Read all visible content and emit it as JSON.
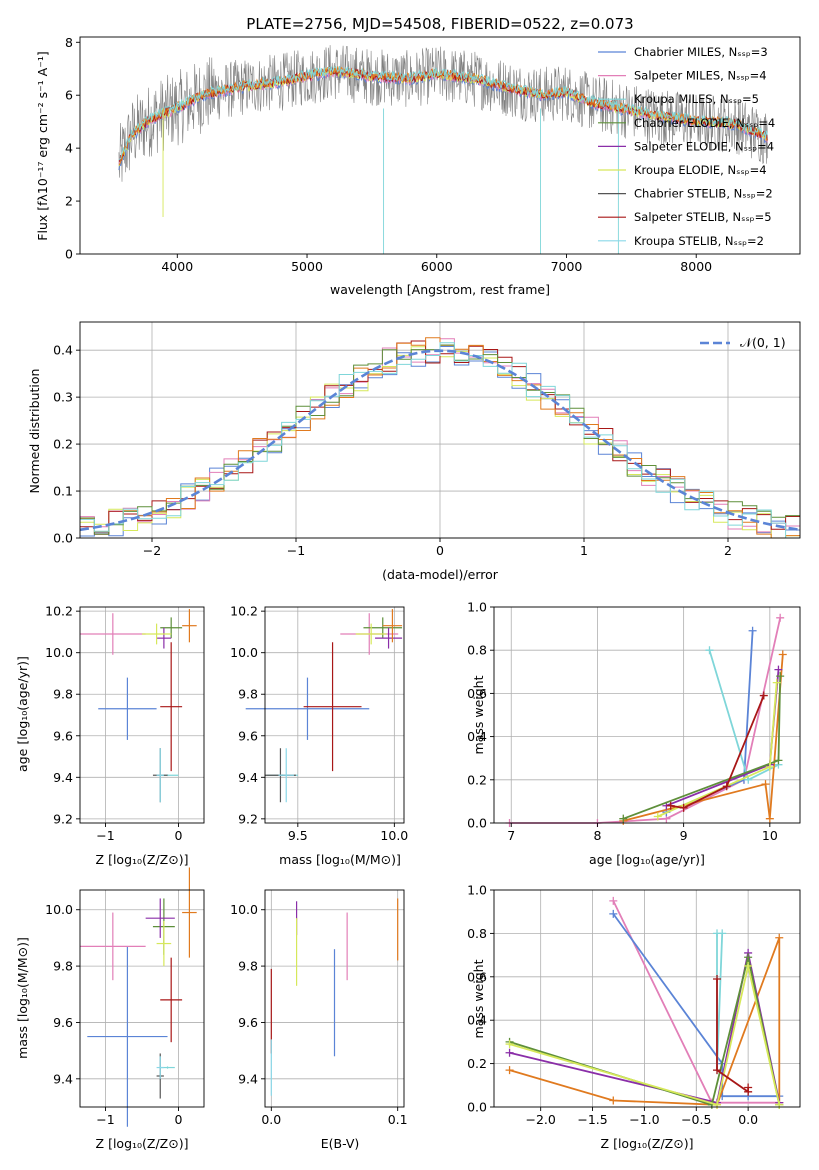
{
  "colors": {
    "chabrier_miles": "#5b84d6",
    "salpeter_miles": "#e27fb8",
    "kroupa_miles": "#7fd6d9",
    "chabrier_elodie": "#5e8f3a",
    "salpeter_elodie": "#8a2ea8",
    "kroupa_elodie": "#d6e85a",
    "chabrier_stelib": "#555555",
    "salpeter_stelib": "#a81717",
    "kroupa_stelib": "#8ad8e8",
    "orange": "#e07a1f",
    "data": "#808080",
    "gauss": "#5b84d6"
  },
  "chart_data": [
    {
      "type": "line",
      "title": "PLATE=2756, MJD=54508, FIBERID=0522, z=0.073",
      "xlabel": "wavelength [Angstrom, rest frame]",
      "ylabel": "Flux [fλ10⁻¹⁷ erg cm⁻² s⁻¹ A⁻¹]",
      "xlim": [
        3250,
        8800
      ],
      "ylim": [
        0,
        8.2
      ],
      "xticks": [
        "4000",
        "5000",
        "6000",
        "7000",
        "8000"
      ],
      "yticks": [
        "0",
        "2",
        "4",
        "6",
        "8"
      ],
      "legend": [
        "Chabrier MILES, Nₛₛₚ=3",
        "Salpeter MILES, Nₛₛₚ=4",
        "Kroupa MILES, Nₛₛₚ=5",
        "Chabrier ELODIE, Nₛₛₚ=4",
        "Salpeter ELODIE, Nₛₛₚ=4",
        "Kroupa ELODIE, Nₛₛₚ=4",
        "Chabrier STELIB, Nₛₛₚ=2",
        "Salpeter STELIB, Nₛₛₚ=5",
        "Kroupa STELIB, Nₛₛₚ=2"
      ],
      "legend_colors": [
        "chabrier_miles",
        "salpeter_miles",
        "kroupa_miles",
        "chabrier_elodie",
        "salpeter_elodie",
        "kroupa_elodie",
        "chabrier_stelib",
        "salpeter_stelib",
        "kroupa_stelib"
      ],
      "continuum": [
        [
          3550,
          3.4
        ],
        [
          3650,
          4.5
        ],
        [
          3800,
          5.1
        ],
        [
          4000,
          5.5
        ],
        [
          4200,
          6.0
        ],
        [
          4500,
          6.3
        ],
        [
          4800,
          6.5
        ],
        [
          5000,
          6.7
        ],
        [
          5200,
          6.9
        ],
        [
          5500,
          6.7
        ],
        [
          5800,
          6.6
        ],
        [
          6000,
          6.8
        ],
        [
          6300,
          6.6
        ],
        [
          6600,
          6.2
        ],
        [
          6800,
          6.0
        ],
        [
          7000,
          6.1
        ],
        [
          7200,
          5.7
        ],
        [
          7400,
          5.5
        ],
        [
          7700,
          5.2
        ],
        [
          8000,
          5.0
        ],
        [
          8300,
          4.9
        ],
        [
          8550,
          4.4
        ]
      ]
    },
    {
      "type": "line",
      "xlabel": "(data-model)/error",
      "ylabel": "Normed distribution",
      "xlim": [
        -2.5,
        2.5
      ],
      "ylim": [
        0,
        0.46
      ],
      "xticks": [
        "−2",
        "−1",
        "0",
        "1",
        "2"
      ],
      "yticks": [
        "0.0",
        "0.1",
        "0.2",
        "0.3",
        "0.4"
      ],
      "legend": [
        "𝒩(0, 1)"
      ]
    },
    {
      "type": "scatter",
      "xlabel": "Z [log₁₀(Z/Z⊙)]",
      "ylabel": "age  [log₁₀(age/yr)]",
      "xlim": [
        -1.35,
        0.35
      ],
      "ylim": [
        9.18,
        10.22
      ],
      "xticks": [
        "−1",
        "0"
      ],
      "yticks": [
        "9.2",
        "9.4",
        "9.6",
        "9.8",
        "10.0",
        "10.2"
      ],
      "points": [
        {
          "x": -0.7,
          "y": 9.73,
          "xerr": 0.4,
          "yerr": 0.15,
          "color": "chabrier_miles"
        },
        {
          "x": -0.9,
          "y": 10.09,
          "xerr": 0.45,
          "yerr": 0.1,
          "color": "salpeter_miles"
        },
        {
          "x": -0.15,
          "y": 9.41,
          "xerr": 0.15,
          "yerr": 0.0,
          "color": "kroupa_miles"
        },
        {
          "x": -0.1,
          "y": 10.12,
          "xerr": 0.15,
          "yerr": 0.05,
          "color": "chabrier_elodie"
        },
        {
          "x": -0.2,
          "y": 10.07,
          "xerr": 0.1,
          "yerr": 0.05,
          "color": "salpeter_elodie"
        },
        {
          "x": -0.3,
          "y": 10.09,
          "xerr": 0.2,
          "yerr": 0.05,
          "color": "kroupa_elodie"
        },
        {
          "x": -0.25,
          "y": 9.41,
          "xerr": 0.1,
          "yerr": 0.13,
          "color": "chabrier_stelib"
        },
        {
          "x": -0.1,
          "y": 9.74,
          "xerr": 0.15,
          "yerr": 0.31,
          "color": "salpeter_stelib"
        },
        {
          "x": -0.25,
          "y": 9.41,
          "xerr": 0.05,
          "yerr": 0.13,
          "color": "kroupa_stelib"
        },
        {
          "x": 0.15,
          "y": 10.13,
          "xerr": 0.1,
          "yerr": 0.08,
          "color": "orange"
        }
      ]
    },
    {
      "type": "scatter",
      "xlabel": "mass [log₁₀(M/M⊙)]",
      "xlim": [
        9.33,
        10.05
      ],
      "ylim": [
        9.18,
        10.22
      ],
      "xticks": [
        "9.5",
        "10.0"
      ],
      "yticks": [
        "9.2",
        "9.4",
        "9.6",
        "9.8",
        "10.0",
        "10.2"
      ],
      "points": [
        {
          "x": 9.55,
          "y": 9.73,
          "xerr": 0.32,
          "yerr": 0.15,
          "color": "chabrier_miles"
        },
        {
          "x": 9.87,
          "y": 10.09,
          "xerr": 0.15,
          "yerr": 0.1,
          "color": "salpeter_miles"
        },
        {
          "x": 9.42,
          "y": 9.41,
          "xerr": 0.08,
          "yerr": 0.0,
          "color": "kroupa_miles"
        },
        {
          "x": 9.94,
          "y": 10.12,
          "xerr": 0.1,
          "yerr": 0.05,
          "color": "chabrier_elodie"
        },
        {
          "x": 9.97,
          "y": 10.07,
          "xerr": 0.07,
          "yerr": 0.05,
          "color": "salpeter_elodie"
        },
        {
          "x": 9.88,
          "y": 10.09,
          "xerr": 0.08,
          "yerr": 0.05,
          "color": "kroupa_elodie"
        },
        {
          "x": 9.41,
          "y": 9.41,
          "xerr": 0.08,
          "yerr": 0.13,
          "color": "chabrier_stelib"
        },
        {
          "x": 9.68,
          "y": 9.74,
          "xerr": 0.15,
          "yerr": 0.31,
          "color": "salpeter_stelib"
        },
        {
          "x": 9.44,
          "y": 9.41,
          "xerr": 0.04,
          "yerr": 0.13,
          "color": "kroupa_stelib"
        },
        {
          "x": 9.99,
          "y": 10.13,
          "xerr": 0.05,
          "yerr": 0.08,
          "color": "orange"
        }
      ]
    },
    {
      "type": "line",
      "xlabel": "age  [log₁₀(age/yr)]",
      "ylabel": "mass weight",
      "xlim": [
        6.8,
        10.35
      ],
      "ylim": [
        0,
        1.0
      ],
      "xticks": [
        "7",
        "8",
        "9",
        "10"
      ],
      "yticks": [
        "0.0",
        "0.2",
        "0.4",
        "0.6",
        "0.8",
        "1.0"
      ],
      "series": [
        {
          "color": "salpeter_miles",
          "x": [
            6.98,
            8.0,
            8.8,
            9.7,
            10.12
          ],
          "y": [
            0.0,
            0.0,
            0.02,
            0.2,
            0.95
          ]
        },
        {
          "color": "chabrier_miles",
          "x": [
            8.8,
            9.7,
            9.8
          ],
          "y": [
            0.05,
            0.2,
            0.89
          ]
        },
        {
          "color": "kroupa_miles",
          "x": [
            9.3,
            9.75,
            10.1
          ],
          "y": [
            0.8,
            0.2,
            0.27
          ]
        },
        {
          "color": "orange",
          "x": [
            8.3,
            9.95,
            10.0,
            10.15
          ],
          "y": [
            0.01,
            0.18,
            0.02,
            0.78
          ]
        },
        {
          "color": "salpeter_elodie",
          "x": [
            8.8,
            10.0,
            10.1
          ],
          "y": [
            0.08,
            0.27,
            0.71
          ]
        },
        {
          "color": "chabrier_elodie",
          "x": [
            8.3,
            10.1,
            10.12
          ],
          "y": [
            0.02,
            0.29,
            0.68
          ]
        },
        {
          "color": "kroupa_elodie",
          "x": [
            8.7,
            10.0,
            10.08
          ],
          "y": [
            0.03,
            0.26,
            0.65
          ]
        },
        {
          "color": "salpeter_stelib",
          "x": [
            8.85,
            9.0,
            9.5,
            9.93
          ],
          "y": [
            0.08,
            0.07,
            0.17,
            0.59
          ]
        }
      ]
    },
    {
      "type": "scatter",
      "xlabel": "Z [log₁₀(Z/Z⊙)]",
      "ylabel": "mass [log₁₀(M/M⊙)]",
      "xlim": [
        -1.35,
        0.35
      ],
      "ylim": [
        9.3,
        10.07
      ],
      "xticks": [
        "−1",
        "0"
      ],
      "yticks": [
        "9.4",
        "9.6",
        "9.8",
        "10.0"
      ],
      "points": [
        {
          "x": -0.7,
          "y": 9.55,
          "xerr": 0.55,
          "yerr": 0.32,
          "color": "chabrier_miles"
        },
        {
          "x": -0.9,
          "y": 9.87,
          "xerr": 0.45,
          "yerr": 0.12,
          "color": "salpeter_miles"
        },
        {
          "x": -0.15,
          "y": 9.44,
          "xerr": 0.1,
          "yerr": 0.0,
          "color": "kroupa_miles"
        },
        {
          "x": -0.2,
          "y": 9.94,
          "xerr": 0.15,
          "yerr": 0.1,
          "color": "chabrier_elodie"
        },
        {
          "x": -0.25,
          "y": 9.97,
          "xerr": 0.2,
          "yerr": 0.07,
          "color": "salpeter_elodie"
        },
        {
          "x": -0.2,
          "y": 9.88,
          "xerr": 0.1,
          "yerr": 0.08,
          "color": "kroupa_elodie"
        },
        {
          "x": -0.25,
          "y": 9.41,
          "xerr": 0.05,
          "yerr": 0.08,
          "color": "chabrier_stelib"
        },
        {
          "x": -0.1,
          "y": 9.68,
          "xerr": 0.15,
          "yerr": 0.15,
          "color": "salpeter_stelib"
        },
        {
          "x": -0.25,
          "y": 9.44,
          "xerr": 0.05,
          "yerr": 0.04,
          "color": "kroupa_stelib"
        },
        {
          "x": 0.15,
          "y": 9.99,
          "xerr": 0.1,
          "yerr": 0.16,
          "color": "orange"
        }
      ]
    },
    {
      "type": "scatter",
      "xlabel": "E(B-V)",
      "xlim": [
        -0.005,
        0.105
      ],
      "ylim": [
        9.3,
        10.07
      ],
      "xticks": [
        "0.0",
        "0.1"
      ],
      "yticks": [
        "9.4",
        "9.6",
        "9.8",
        "10.0"
      ],
      "points": [
        {
          "x": 0.05,
          "y": 9.67,
          "yerr": 0.19,
          "color": "chabrier_miles"
        },
        {
          "x": 0.06,
          "y": 9.87,
          "yerr": 0.12,
          "color": "salpeter_miles"
        },
        {
          "x": 0.02,
          "y": 9.97,
          "yerr": 0.06,
          "color": "salpeter_elodie"
        },
        {
          "x": 0.02,
          "y": 9.85,
          "yerr": 0.12,
          "color": "kroupa_elodie"
        },
        {
          "x": 0.0,
          "y": 9.64,
          "yerr": 0.15,
          "color": "salpeter_stelib"
        },
        {
          "x": 0.0,
          "y": 9.44,
          "yerr": 0.1,
          "color": "kroupa_stelib"
        },
        {
          "x": 0.1,
          "y": 9.93,
          "yerr": 0.11,
          "color": "orange"
        }
      ]
    },
    {
      "type": "line",
      "xlabel": "Z [log₁₀(Z/Z⊙)]",
      "ylabel": "mass weight",
      "xlim": [
        -2.45,
        0.5
      ],
      "ylim": [
        0,
        1.0
      ],
      "xticks": [
        "−2.0",
        "−1.5",
        "−1.0",
        "−0.5",
        "0.0"
      ],
      "yticks": [
        "0.0",
        "0.2",
        "0.4",
        "0.6",
        "0.8",
        "1.0"
      ],
      "series": [
        {
          "color": "salpeter_miles",
          "x": [
            -1.3,
            -0.35,
            0.3
          ],
          "y": [
            0.95,
            0.02,
            0.02
          ]
        },
        {
          "color": "chabrier_miles",
          "x": [
            -1.3,
            -0.25,
            -0.25,
            0.0,
            0.3
          ],
          "y": [
            0.89,
            0.2,
            0.05,
            0.05,
            0.05
          ]
        },
        {
          "color": "kroupa_miles",
          "x": [
            -0.3,
            -0.3,
            -0.25
          ],
          "y": [
            0.8,
            0.17,
            0.8
          ]
        },
        {
          "color": "orange",
          "x": [
            -2.3,
            -1.3,
            -0.3,
            0.3,
            0.3
          ],
          "y": [
            0.17,
            0.03,
            0.01,
            0.78,
            0.02
          ]
        },
        {
          "color": "salpeter_elodie",
          "x": [
            -2.3,
            -0.3,
            0.0,
            0.3
          ],
          "y": [
            0.25,
            0.02,
            0.71,
            0.02
          ]
        },
        {
          "color": "chabrier_elodie",
          "x": [
            -2.3,
            -0.35,
            0.0,
            0.3
          ],
          "y": [
            0.3,
            0.01,
            0.69,
            0.01
          ]
        },
        {
          "color": "kroupa_elodie",
          "x": [
            -2.3,
            -0.3,
            0.0,
            0.3
          ],
          "y": [
            0.29,
            0.01,
            0.65,
            0.01
          ]
        },
        {
          "color": "salpeter_stelib",
          "x": [
            -0.3,
            -0.3,
            0.0,
            0.0
          ],
          "y": [
            0.59,
            0.17,
            0.07,
            0.09
          ]
        }
      ]
    }
  ]
}
